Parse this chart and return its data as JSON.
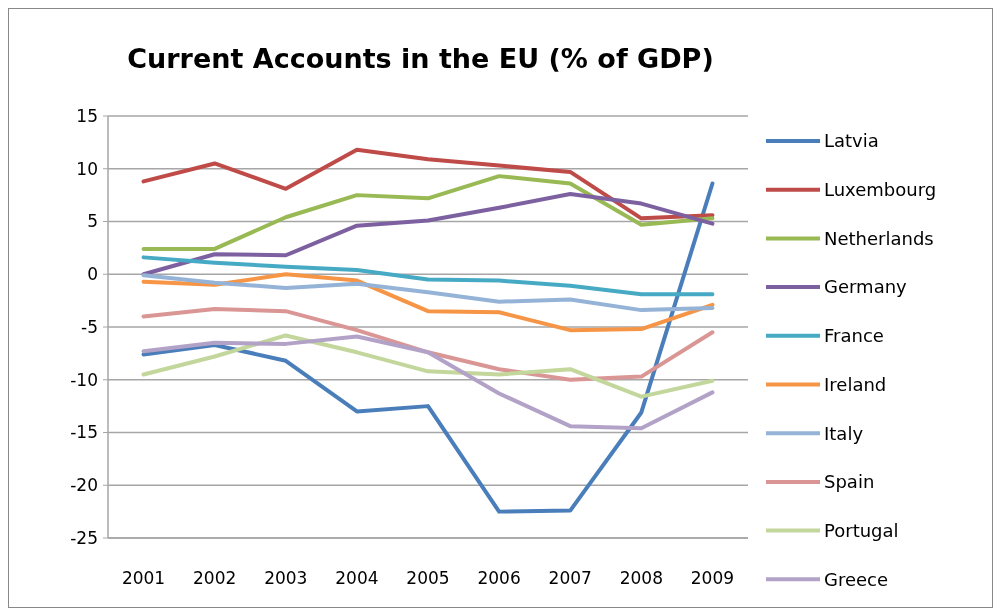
{
  "chart_data": {
    "type": "line",
    "title": "Current Accounts in the EU (% of GDP)",
    "categories": [
      "2001",
      "2002",
      "2003",
      "2004",
      "2005",
      "2006",
      "2007",
      "2008",
      "2009"
    ],
    "ylim": [
      -25,
      15
    ],
    "yticks": [
      -25,
      -20,
      -15,
      -10,
      -5,
      0,
      5,
      10,
      15
    ],
    "grid": "y",
    "legend": "right",
    "marker": "none",
    "line_style": "solid",
    "series": [
      {
        "name": "Latvia",
        "color": "#4a7ebb",
        "values": [
          -7.6,
          -6.7,
          -8.2,
          -13,
          -12.5,
          -22.5,
          -22.4,
          -13.1,
          8.6
        ]
      },
      {
        "name": "Luxembourg",
        "color": "#be4b48",
        "values": [
          8.8,
          10.5,
          8.1,
          11.8,
          10.9,
          10.3,
          9.7,
          5.3,
          5.6
        ]
      },
      {
        "name": "Netherlands",
        "color": "#98b954",
        "values": [
          2.4,
          2.4,
          5.4,
          7.5,
          7.2,
          9.3,
          8.6,
          4.7,
          5.3
        ]
      },
      {
        "name": "Germany",
        "color": "#7d60a0",
        "values": [
          0,
          1.9,
          1.8,
          4.6,
          5.1,
          6.3,
          7.6,
          6.7,
          4.8
        ]
      },
      {
        "name": "France",
        "color": "#46aac5",
        "values": [
          1.6,
          1.1,
          0.7,
          0.4,
          -0.5,
          -0.6,
          -1.1,
          -1.9,
          -1.9
        ]
      },
      {
        "name": "Ireland",
        "color": "#f69546",
        "values": [
          -0.7,
          -1.0,
          0,
          -0.6,
          -3.5,
          -3.6,
          -5.3,
          -5.2,
          -2.9
        ]
      },
      {
        "name": "Italy",
        "color": "#95b3d7",
        "values": [
          -0.1,
          -0.8,
          -1.3,
          -0.9,
          -1.7,
          -2.6,
          -2.4,
          -3.4,
          -3.2
        ]
      },
      {
        "name": "Spain",
        "color": "#d99694",
        "values": [
          -4.0,
          -3.3,
          -3.5,
          -5.3,
          -7.4,
          -9.0,
          -10.0,
          -9.7,
          -5.5
        ]
      },
      {
        "name": "Portugal",
        "color": "#c3d69b",
        "values": [
          -9.5,
          -7.8,
          -5.8,
          -7.4,
          -9.2,
          -9.5,
          -9.0,
          -11.6,
          -10.1
        ]
      },
      {
        "name": "Greece",
        "color": "#b3a2c7",
        "values": [
          -7.3,
          -6.5,
          -6.6,
          -5.9,
          -7.4,
          -11.3,
          -14.4,
          -14.6,
          -11.2
        ]
      }
    ]
  }
}
